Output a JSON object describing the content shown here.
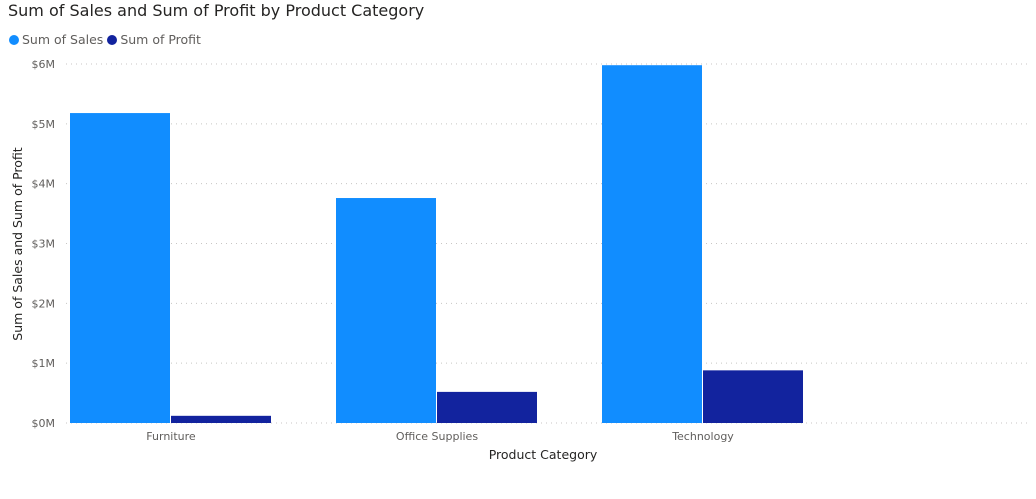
{
  "chart_data": {
    "type": "bar",
    "title": "Sum of Sales and Sum of Profit by Product Category",
    "xlabel": "Product Category",
    "ylabel": "Sum of Sales and Sum of Profit",
    "categories": [
      "Furniture",
      "Office Supplies",
      "Technology"
    ],
    "series": [
      {
        "name": "Sum of Sales",
        "color": "#118dff",
        "values": [
          5180000,
          3760000,
          5980000
        ]
      },
      {
        "name": "Sum of Profit",
        "color": "#12239e",
        "values": [
          120000,
          520000,
          880000
        ]
      }
    ],
    "ylim": [
      0,
      6000000
    ],
    "yticks": [
      {
        "value": 0,
        "label": "$0M"
      },
      {
        "value": 1000000,
        "label": "$1M"
      },
      {
        "value": 2000000,
        "label": "$2M"
      },
      {
        "value": 3000000,
        "label": "$3M"
      },
      {
        "value": 4000000,
        "label": "$4M"
      },
      {
        "value": 5000000,
        "label": "$5M"
      },
      {
        "value": 6000000,
        "label": "$6M"
      }
    ],
    "grid": true,
    "legend_position": "top-left"
  }
}
